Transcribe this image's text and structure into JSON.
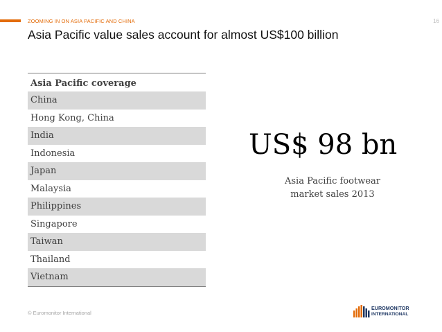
{
  "header": {
    "section_label": "ZOOMING IN ON ASIA PACIFIC AND CHINA",
    "page_number": "16",
    "title": "Asia Pacific value sales account for almost US$100 billion"
  },
  "table": {
    "header": "Asia Pacific coverage",
    "rows": [
      "China",
      "Hong Kong, China",
      "India",
      "Indonesia",
      "Japan",
      "Malaysia",
      "Philippines",
      "Singapore",
      "Taiwan",
      "Thailand",
      "Vietnam"
    ]
  },
  "highlight": {
    "figure": "US$ 98 bn",
    "caption_line1": "Asia Pacific footwear",
    "caption_line2": "market sales 2013"
  },
  "footer": {
    "copyright": "© Euromonitor International",
    "logo_text_line1": "EUROMONITOR",
    "logo_text_line2": "INTERNATIONAL"
  },
  "colors": {
    "accent": "#e36c0a",
    "row_shade": "#d9d9d9",
    "logo_navy": "#1f3864"
  }
}
